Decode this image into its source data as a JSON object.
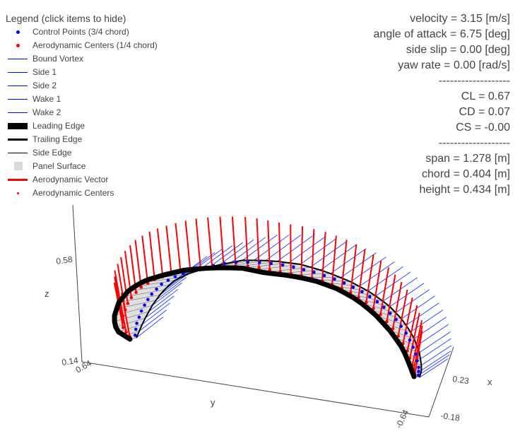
{
  "legend": {
    "title": "Legend (click items to hide)",
    "items": [
      {
        "label": "Control Points (3/4 chord)",
        "kind": "dot",
        "color": "#0000ff"
      },
      {
        "label": "Aerodynamic Centers (1/4 chord)",
        "kind": "dot",
        "color": "#ff0000"
      },
      {
        "label": "Bound Vortex",
        "kind": "line",
        "color": "#0000ff",
        "weight": "thin"
      },
      {
        "label": "Side 1",
        "kind": "line",
        "color": "#0000ff",
        "weight": "thin"
      },
      {
        "label": "Side 2",
        "kind": "line",
        "color": "#0000ff",
        "weight": "thin"
      },
      {
        "label": "Wake 1",
        "kind": "line",
        "color": "#0000ff",
        "weight": "thin"
      },
      {
        "label": "Wake 2",
        "kind": "line",
        "color": "#0000ff",
        "weight": "thin"
      },
      {
        "label": "Leading Edge",
        "kind": "line",
        "color": "#000000",
        "weight": "heavy"
      },
      {
        "label": "Trailing Edge",
        "kind": "line",
        "color": "#000000",
        "weight": "medium"
      },
      {
        "label": "Side Edge",
        "kind": "line",
        "color": "#000000",
        "weight": "hair"
      },
      {
        "label": "Panel Surface",
        "kind": "square",
        "color": "#d9d9d9"
      },
      {
        "label": "Aerodynamic Vector",
        "kind": "line",
        "color": "#ff0000",
        "weight": "medium"
      },
      {
        "label": "Aerodynamic Centers",
        "kind": "smalldot",
        "color": "#ff0000"
      }
    ]
  },
  "info": {
    "lines": [
      "velocity = 3.15 [m/s]",
      "angle of attack = 6.75 [deg]",
      "side slip = 0.00 [deg]",
      "yaw rate = 0.00 [rad/s]",
      "-------------------",
      "CL = 0.67",
      "CD = 0.07",
      "CS = -0.00",
      "-------------------",
      "span = 1.278 [m]",
      "chord = 0.404 [m]",
      "height = 0.434 [m]"
    ]
  },
  "chart_data": {
    "type": "3d-wing-plot",
    "axes": {
      "x": {
        "label": "x",
        "ticks": [
          "0.23",
          "-0.18"
        ]
      },
      "y": {
        "label": "y",
        "ticks": [
          "0.64",
          "-0.64"
        ]
      },
      "z": {
        "label": "z",
        "ticks": [
          "0.58",
          "0.14"
        ]
      }
    },
    "series": [
      {
        "name": "Control Points (3/4 chord)",
        "color": "#0000ff"
      },
      {
        "name": "Aerodynamic Centers (1/4 chord)",
        "color": "#ff0000"
      },
      {
        "name": "Bound Vortex",
        "color": "#0000ff"
      },
      {
        "name": "Side 1",
        "color": "#0000ff"
      },
      {
        "name": "Side 2",
        "color": "#0000ff"
      },
      {
        "name": "Wake 1",
        "color": "#0000ff"
      },
      {
        "name": "Wake 2",
        "color": "#0000ff"
      },
      {
        "name": "Leading Edge",
        "color": "#000000"
      },
      {
        "name": "Trailing Edge",
        "color": "#000000"
      },
      {
        "name": "Side Edge",
        "color": "#000000"
      },
      {
        "name": "Panel Surface",
        "color": "#d9d9d9"
      },
      {
        "name": "Aerodynamic Vector",
        "color": "#ff0000"
      },
      {
        "name": "Aerodynamic Centers",
        "color": "#ff0000"
      }
    ]
  }
}
